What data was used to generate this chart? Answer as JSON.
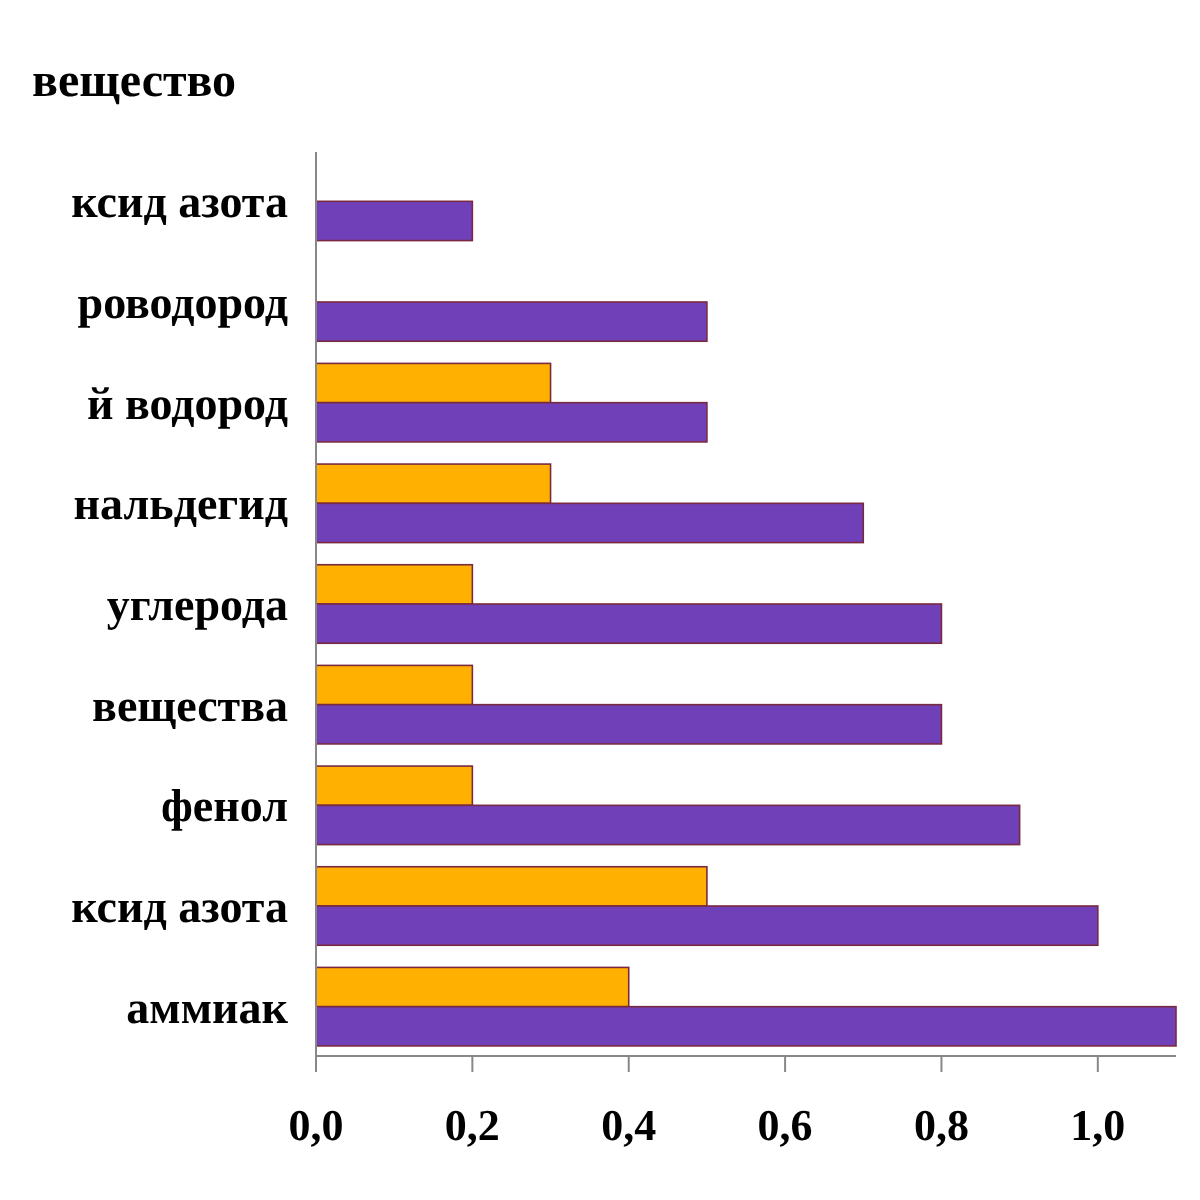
{
  "chart_data": {
    "type": "bar",
    "orientation": "horizontal",
    "title": "вещество",
    "categories": [
      "ксид азота",
      "роводород",
      "й  водород",
      "нальдегид",
      "углерода",
      "вещества",
      "фенол",
      "ксид азота",
      "аммиак"
    ],
    "series": [
      {
        "color": "#ffb000",
        "values": [
          null,
          null,
          0.3,
          0.3,
          0.2,
          0.2,
          0.2,
          0.5,
          0.4
        ]
      },
      {
        "color": "#7040b8",
        "values": [
          0.2,
          0.5,
          0.5,
          0.7,
          0.8,
          0.8,
          0.9,
          1.0,
          1.1
        ]
      }
    ],
    "xlim": [
      0,
      1.1
    ],
    "xticks": [
      {
        "value": 0,
        "label": "0,0"
      },
      {
        "value": 0.2,
        "label": "0,2"
      },
      {
        "value": 0.4,
        "label": "0,4"
      },
      {
        "value": 0.6,
        "label": "0,6"
      },
      {
        "value": 0.8,
        "label": "0,8"
      },
      {
        "value": 1.0,
        "label": "1,0"
      }
    ],
    "grid": false
  }
}
